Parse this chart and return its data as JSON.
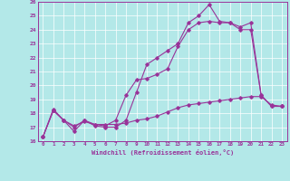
{
  "xlabel": "Windchill (Refroidissement éolien,°C)",
  "bg_color": "#b3e8e8",
  "line_color": "#993399",
  "grid_color": "#ffffff",
  "xlim": [
    -0.5,
    23.5
  ],
  "ylim": [
    16,
    26
  ],
  "xticks": [
    0,
    1,
    2,
    3,
    4,
    5,
    6,
    7,
    8,
    9,
    10,
    11,
    12,
    13,
    14,
    15,
    16,
    17,
    18,
    19,
    20,
    21,
    22,
    23
  ],
  "yticks": [
    16,
    17,
    18,
    19,
    20,
    21,
    22,
    23,
    24,
    25,
    26
  ],
  "curve1_x": [
    0,
    1,
    2,
    3,
    4,
    5,
    6,
    7,
    8,
    9,
    10,
    11,
    12,
    13,
    14,
    15,
    16,
    17,
    18,
    19,
    20,
    21,
    22,
    23
  ],
  "curve1_y": [
    16.3,
    18.3,
    17.5,
    16.7,
    17.5,
    17.1,
    17.0,
    17.0,
    17.5,
    19.5,
    21.5,
    22.0,
    22.5,
    23.0,
    24.5,
    25.0,
    25.8,
    24.6,
    24.5,
    24.0,
    24.0,
    19.3,
    18.5,
    18.5
  ],
  "curve2_x": [
    0,
    1,
    2,
    3,
    4,
    5,
    6,
    7,
    8,
    9,
    10,
    11,
    12,
    13,
    14,
    15,
    16,
    17,
    18,
    19,
    20,
    21,
    22,
    23
  ],
  "curve2_y": [
    16.3,
    18.2,
    17.5,
    17.0,
    17.5,
    17.2,
    17.1,
    17.5,
    19.3,
    20.4,
    20.5,
    20.8,
    21.2,
    22.8,
    24.0,
    24.5,
    24.6,
    24.5,
    24.5,
    24.2,
    24.5,
    19.3,
    18.5,
    18.5
  ],
  "curve3_x": [
    0,
    1,
    2,
    3,
    4,
    5,
    6,
    7,
    8,
    9,
    10,
    11,
    12,
    13,
    14,
    15,
    16,
    17,
    18,
    19,
    20,
    21,
    22,
    23
  ],
  "curve3_y": [
    16.3,
    18.2,
    17.5,
    17.1,
    17.4,
    17.2,
    17.2,
    17.2,
    17.3,
    17.5,
    17.6,
    17.8,
    18.1,
    18.4,
    18.6,
    18.7,
    18.8,
    18.9,
    19.0,
    19.1,
    19.2,
    19.2,
    18.6,
    18.5
  ]
}
